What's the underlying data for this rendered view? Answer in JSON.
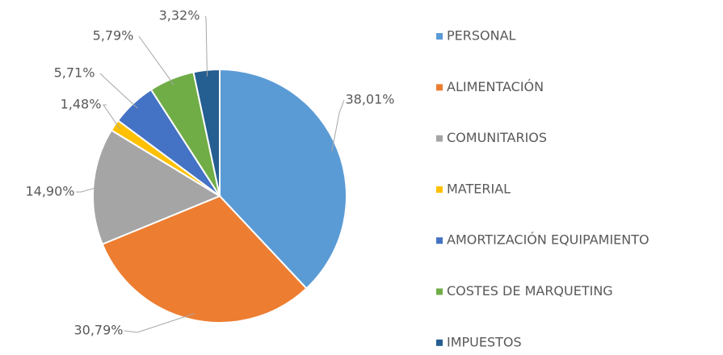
{
  "chart_data": {
    "type": "pie",
    "categories": [
      "PERSONAL",
      "ALIMENTACIÓN",
      "COMUNITARIOS",
      "MATERIAL",
      "AMORTIZACIÓN EQUIPAMIENTO",
      "COSTES DE MARQUETING",
      "IMPUESTOS"
    ],
    "values": [
      38.01,
      30.79,
      14.9,
      1.48,
      5.71,
      5.79,
      3.32
    ],
    "value_labels": [
      "38,01%",
      "30,79%",
      "14,90%",
      "1,48%",
      "5,71%",
      "5,79%",
      "3,32%"
    ],
    "colors": [
      "#5b9bd5",
      "#ed7d31",
      "#a5a5a5",
      "#ffc000",
      "#4472c4",
      "#70ad47",
      "#255e91"
    ],
    "legend": "right"
  }
}
